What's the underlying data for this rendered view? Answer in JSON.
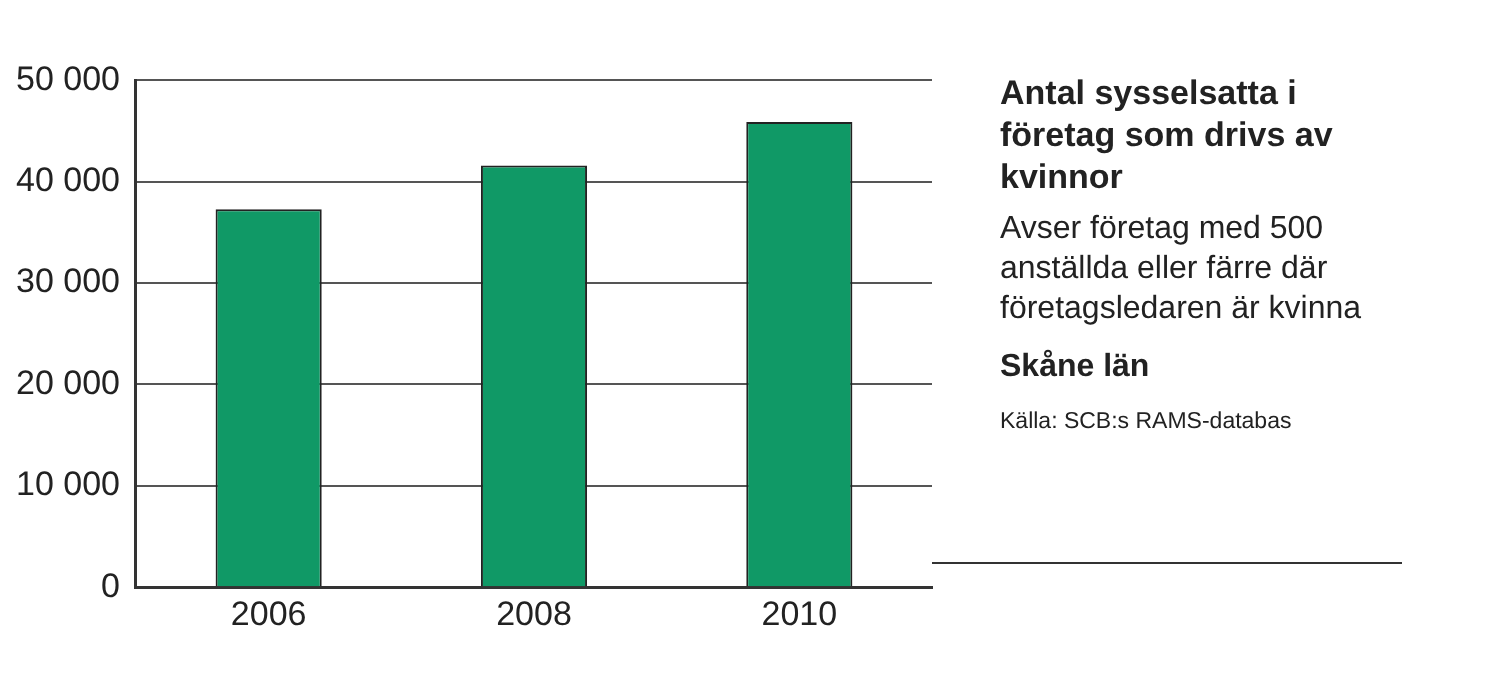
{
  "chart_data": {
    "type": "bar",
    "title": "Antal sysselsatta i företag som drivs av kvinnor",
    "subtitle": "Avser företag med 500 anställda eller färre där företagsledaren är kvinna",
    "annotations": [
      "Skåne län",
      "Källa: SCB:s RAMS-databas"
    ],
    "categories": [
      "2006",
      "2008",
      "2010"
    ],
    "values": [
      37300,
      41600,
      45900
    ],
    "color": "#109966",
    "ylim": [
      0,
      50000
    ],
    "yticks": [
      0,
      {
        "value": 10000,
        "label": "10 000"
      },
      {
        "value": 20000,
        "label": "20 000"
      },
      {
        "value": 30000,
        "label": "30 000"
      },
      {
        "value": 40000,
        "label": "40 000"
      },
      {
        "value": 50000,
        "label": "50 000"
      }
    ],
    "grid": "y",
    "legend": false
  }
}
